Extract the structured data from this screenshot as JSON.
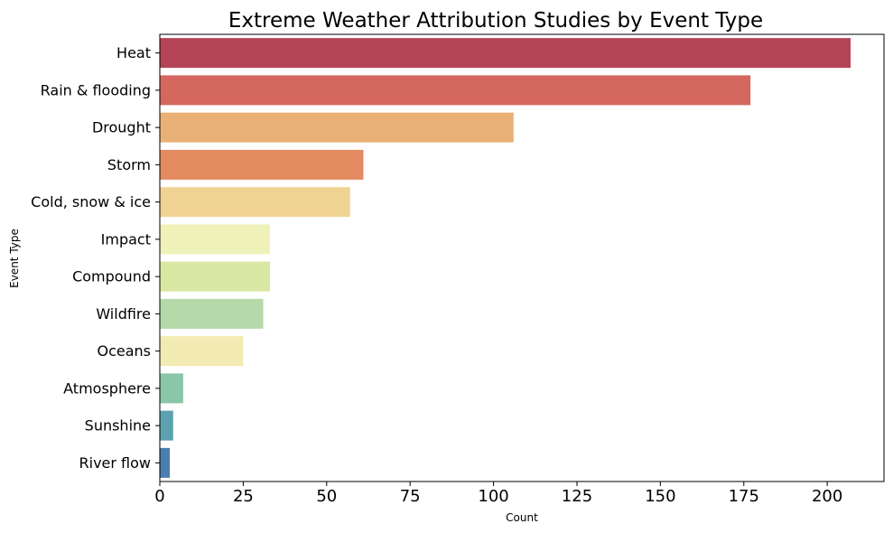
{
  "chart_data": {
    "type": "bar",
    "orientation": "horizontal",
    "title": "Extreme Weather Attribution Studies by Event Type",
    "xlabel": "Count",
    "ylabel": "Event Type",
    "categories": [
      "Heat",
      "Rain & flooding",
      "Drought",
      "Storm",
      "Cold, snow & ice",
      "Impact",
      "Compound",
      "Wildfire",
      "Oceans",
      "Atmosphere",
      "Sunshine",
      "River flow"
    ],
    "values": [
      207,
      177,
      106,
      61,
      57,
      33,
      33,
      31,
      25,
      7,
      4,
      3
    ],
    "colors": [
      "#b44556",
      "#d5685e",
      "#e9b076",
      "#e38a60",
      "#f0d293",
      "#eef2b9",
      "#d8e8a2",
      "#b5d9a9",
      "#f3ebb4",
      "#8ac6a8",
      "#5ca2ae",
      "#4a7eb0"
    ],
    "xlim": [
      0,
      217
    ],
    "xticks": [
      0,
      25,
      50,
      75,
      100,
      125,
      150,
      175,
      200
    ],
    "grid": false
  }
}
